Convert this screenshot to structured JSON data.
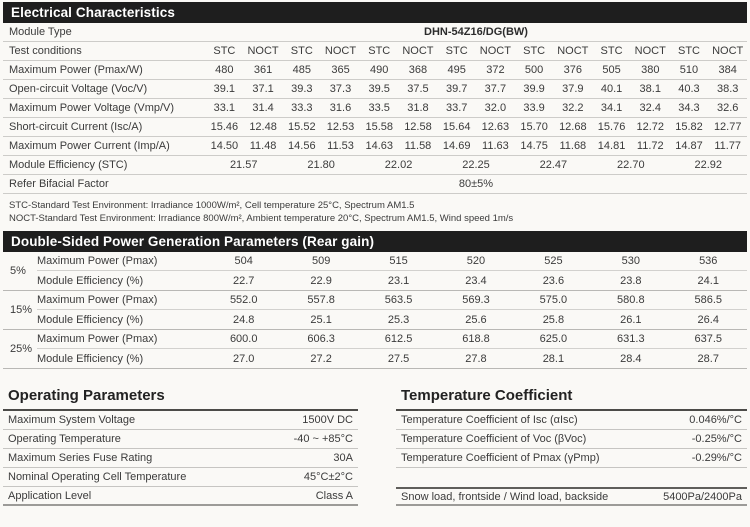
{
  "colors": {
    "section_header_bg": "#1e1e1e",
    "section_header_text": "#ffffff",
    "page_bg": "#faf9f6",
    "body_text": "#3b3b3b"
  },
  "electrical": {
    "title": "Electrical Characteristics",
    "module_type_label": "Module Type",
    "module_type_value": "DHN-54Z16/DG(BW)",
    "test_conditions_label": "Test conditions",
    "test_conditions": [
      "STC",
      "NOCT",
      "STC",
      "NOCT",
      "STC",
      "NOCT",
      "STC",
      "NOCT",
      "STC",
      "NOCT",
      "STC",
      "NOCT",
      "STC",
      "NOCT"
    ],
    "rows": [
      {
        "label": "Maximum Power (Pmax/W)",
        "values": [
          "480",
          "361",
          "485",
          "365",
          "490",
          "368",
          "495",
          "372",
          "500",
          "376",
          "505",
          "380",
          "510",
          "384"
        ]
      },
      {
        "label": "Open-circuit Voltage (Voc/V)",
        "values": [
          "39.1",
          "37.1",
          "39.3",
          "37.3",
          "39.5",
          "37.5",
          "39.7",
          "37.7",
          "39.9",
          "37.9",
          "40.1",
          "38.1",
          "40.3",
          "38.3"
        ]
      },
      {
        "label": "Maximum Power Voltage (Vmp/V)",
        "values": [
          "33.1",
          "31.4",
          "33.3",
          "31.6",
          "33.5",
          "31.8",
          "33.7",
          "32.0",
          "33.9",
          "32.2",
          "34.1",
          "32.4",
          "34.3",
          "32.6"
        ]
      },
      {
        "label": "Short-circuit Current (Isc/A)",
        "values": [
          "15.46",
          "12.48",
          "15.52",
          "12.53",
          "15.58",
          "12.58",
          "15.64",
          "12.63",
          "15.70",
          "12.68",
          "15.76",
          "12.72",
          "15.82",
          "12.77"
        ]
      },
      {
        "label": "Maximum Power Current (Imp/A)",
        "values": [
          "14.50",
          "11.48",
          "14.56",
          "11.53",
          "14.63",
          "11.58",
          "14.69",
          "11.63",
          "14.75",
          "11.68",
          "14.81",
          "11.72",
          "14.87",
          "11.77"
        ]
      }
    ],
    "efficiency_row": {
      "label": "Module Efficiency (STC)",
      "values": [
        "21.57",
        "21.80",
        "22.02",
        "22.25",
        "22.47",
        "22.70",
        "22.92"
      ]
    },
    "bifacial_row": {
      "label": "Refer Bifacial Factor",
      "value": "80±5%"
    },
    "notes": [
      "STC-Standard Test Environment: Irradiance 1000W/m², Cell temperature 25°C, Spectrum AM1.5",
      "NOCT-Standard Test Environment: Irradiance 800W/m², Ambient temperature 20°C, Spectrum AM1.5, Wind speed 1m/s"
    ]
  },
  "rear": {
    "title": "Double-Sided Power Generation Parameters (Rear gain)",
    "groups": [
      {
        "gain": "5%",
        "rows": [
          {
            "label": "Maximum Power (Pmax)",
            "values": [
              "504",
              "509",
              "515",
              "520",
              "525",
              "530",
              "536"
            ]
          },
          {
            "label": "Module Efficiency (%)",
            "values": [
              "22.7",
              "22.9",
              "23.1",
              "23.4",
              "23.6",
              "23.8",
              "24.1"
            ]
          }
        ]
      },
      {
        "gain": "15%",
        "rows": [
          {
            "label": "Maximum Power (Pmax)",
            "values": [
              "552.0",
              "557.8",
              "563.5",
              "569.3",
              "575.0",
              "580.8",
              "586.5"
            ]
          },
          {
            "label": "Module Efficiency (%)",
            "values": [
              "24.8",
              "25.1",
              "25.3",
              "25.6",
              "25.8",
              "26.1",
              "26.4"
            ]
          }
        ]
      },
      {
        "gain": "25%",
        "rows": [
          {
            "label": "Maximum Power (Pmax)",
            "values": [
              "600.0",
              "606.3",
              "612.5",
              "618.8",
              "625.0",
              "631.3",
              "637.5"
            ]
          },
          {
            "label": "Module Efficiency (%)",
            "values": [
              "27.0",
              "27.2",
              "27.5",
              "27.8",
              "28.1",
              "28.4",
              "28.7"
            ]
          }
        ]
      }
    ]
  },
  "operating": {
    "title": "Operating Parameters",
    "rows": [
      {
        "label": "Maximum System Voltage",
        "value": "1500V DC"
      },
      {
        "label": "Operating Temperature",
        "value": "-40 ~ +85°C"
      },
      {
        "label": "Maximum Series Fuse Rating",
        "value": "30A"
      },
      {
        "label": "Nominal Operating Cell Temperature",
        "value": "45°C±2°C"
      },
      {
        "label": "Application Level",
        "value": "Class A"
      }
    ]
  },
  "temperature": {
    "title": "Temperature Coefficient",
    "rows": [
      {
        "label": "Temperature Coefficient of Isc (αIsc)",
        "value": "0.046%/°C"
      },
      {
        "label": "Temperature Coefficient of Voc (βVoc)",
        "value": "-0.25%/°C"
      },
      {
        "label": "Temperature Coefficient of Pmax (γPmp)",
        "value": "-0.29%/°C"
      }
    ],
    "load_row": {
      "label": "Snow load, frontside / Wind load, backside",
      "value": "5400Pa/2400Pa"
    }
  }
}
